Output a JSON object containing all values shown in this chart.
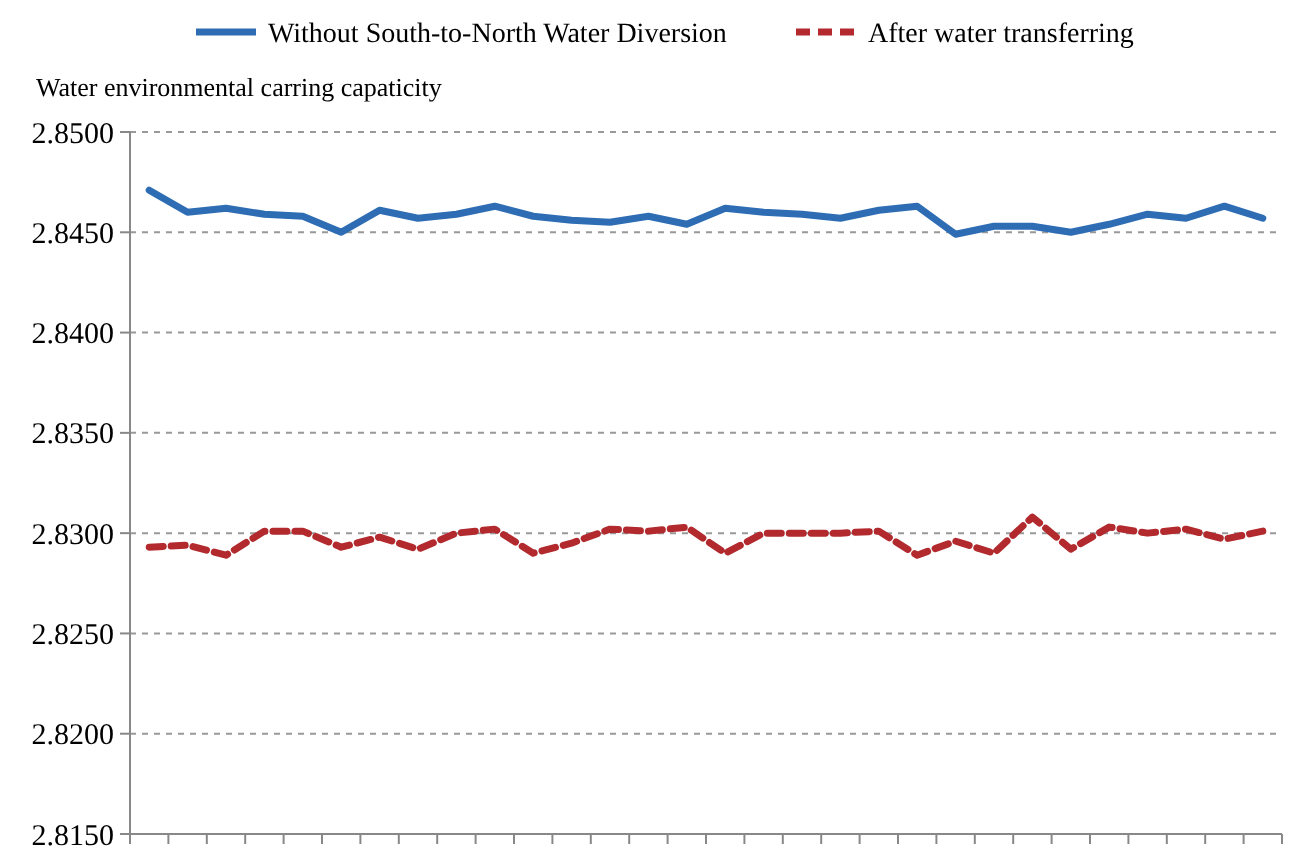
{
  "chart_data": {
    "type": "line",
    "ylabel": "Water environmental carring capaticity",
    "categories": [
      null,
      null,
      null,
      null,
      null,
      null,
      null,
      null,
      null,
      null,
      null,
      null,
      null,
      null,
      null,
      null,
      null,
      null,
      null,
      null,
      null,
      null,
      null,
      null,
      null,
      null,
      null,
      null,
      null,
      null
    ],
    "series": [
      {
        "name": "Without South-to-North Water Diversion",
        "color": "#2e6db4",
        "line_style": "solid",
        "values": [
          2.8471,
          2.846,
          2.8462,
          2.8459,
          2.8458,
          2.845,
          2.8461,
          2.8457,
          2.8459,
          2.8463,
          2.8458,
          2.8456,
          2.8455,
          2.8458,
          2.8454,
          2.8462,
          2.846,
          2.8459,
          2.8457,
          2.8461,
          2.8463,
          2.8449,
          2.8453,
          2.8453,
          2.845,
          2.8454,
          2.8459,
          2.8457,
          2.8463,
          2.8457
        ]
      },
      {
        "name": "After water transferring",
        "color": "#b22a2e",
        "line_style": "dashed",
        "values": [
          2.8293,
          2.8294,
          2.8289,
          2.8301,
          2.8301,
          2.8293,
          2.8298,
          2.8292,
          2.83,
          2.8302,
          2.829,
          2.8295,
          2.8302,
          2.8301,
          2.8303,
          2.829,
          2.83,
          2.83,
          2.83,
          2.8301,
          2.8289,
          2.8296,
          2.829,
          2.8308,
          2.8292,
          2.8303,
          2.83,
          2.8302,
          2.8297,
          2.8301
        ]
      }
    ],
    "ylim": [
      2.815,
      2.85
    ],
    "yticks": [
      {
        "value": 2.815,
        "label": "2.8150"
      },
      {
        "value": 2.82,
        "label": "2.8200"
      },
      {
        "value": 2.825,
        "label": "2.8250"
      },
      {
        "value": 2.83,
        "label": "2.8300"
      },
      {
        "value": 2.835,
        "label": "2.8350"
      },
      {
        "value": 2.84,
        "label": "2.8400"
      },
      {
        "value": 2.845,
        "label": "2.8450"
      },
      {
        "value": 2.85,
        "label": "2.8500"
      }
    ],
    "grid": "y",
    "legend": "top",
    "marker": "none"
  }
}
